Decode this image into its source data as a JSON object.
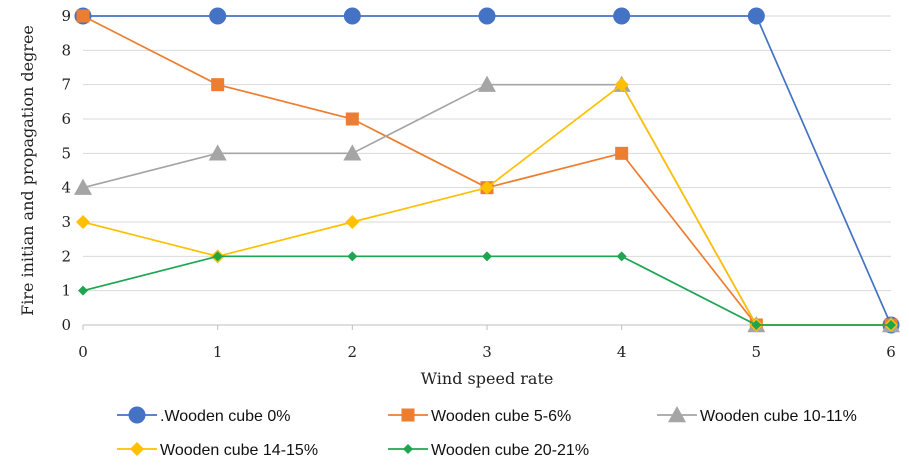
{
  "chart_data": {
    "type": "line",
    "title": "",
    "xlabel": "Wind speed rate",
    "ylabel": "Fire initian and propagation degree",
    "x": [
      0,
      1,
      2,
      3,
      4,
      5,
      6
    ],
    "xlim": [
      0,
      6
    ],
    "ylim": [
      0,
      9
    ],
    "yticks": [
      0,
      1,
      2,
      3,
      4,
      5,
      6,
      7,
      8,
      9
    ],
    "grid": true,
    "legend_position": "bottom",
    "series": [
      {
        "name": "Wooden cube 0%",
        "legend_label": ".Wooden cube 0%",
        "color": "#4472C4",
        "marker": "circle",
        "values": [
          9,
          9,
          9,
          9,
          9,
          9,
          0
        ]
      },
      {
        "name": "Wooden cube 5-6%",
        "legend_label": "Wooden cube 5-6%",
        "color": "#ED7D31",
        "marker": "square",
        "values": [
          9,
          7,
          6,
          4,
          5,
          0,
          0
        ]
      },
      {
        "name": "Wooden cube 10-11%",
        "legend_label": "Wooden cube 10-11%",
        "color": "#A5A5A5",
        "marker": "triangle",
        "values": [
          4,
          5,
          5,
          7,
          7,
          0,
          0
        ]
      },
      {
        "name": "Wooden cube 14-15%",
        "legend_label": "Wooden cube 14-15%",
        "color": "#FFC000",
        "marker": "diamond",
        "values": [
          3,
          2,
          3,
          4,
          7,
          0,
          0
        ]
      },
      {
        "name": "Wooden cube 20-21%",
        "legend_label": "Wooden cube 20-21%",
        "color": "#1EA552",
        "marker": "diamond-small",
        "values": [
          1,
          2,
          2,
          2,
          2,
          0,
          0
        ]
      }
    ]
  }
}
